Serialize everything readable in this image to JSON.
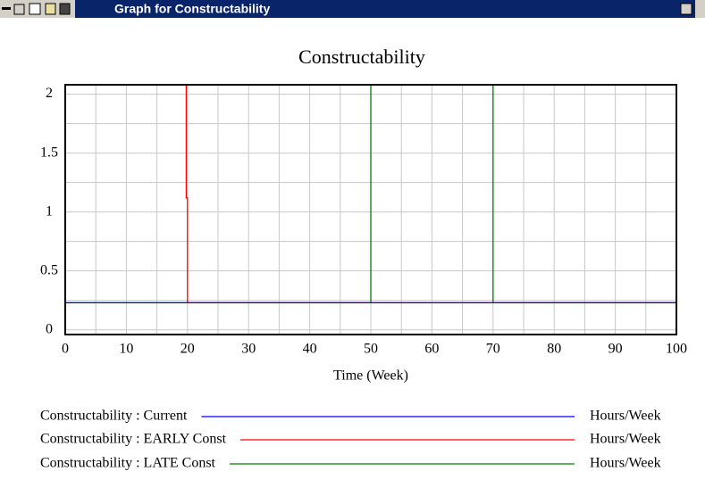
{
  "window": {
    "title": "Graph for Constructability"
  },
  "chart_data": {
    "type": "line",
    "title": "Constructability",
    "xlabel": "Time (Week)",
    "xlim": [
      0,
      100
    ],
    "xticks": [
      0,
      10,
      20,
      30,
      40,
      50,
      60,
      70,
      80,
      90,
      100
    ],
    "ylim": [
      -0.04,
      2.08
    ],
    "yticks": [
      0,
      0.5,
      1,
      1.5,
      2
    ],
    "grid": true,
    "series": [
      {
        "name": "Constructability : Current",
        "color": "#0000ff",
        "units": "Hours/Week",
        "x": [
          0,
          100
        ],
        "values": [
          0.23,
          0.23
        ]
      },
      {
        "name": "Constructability : EARLY Const",
        "color": "#ff0000",
        "units": "Hours/Week",
        "x": [
          0,
          19.8,
          19.8,
          20,
          20,
          100
        ],
        "values": [
          2.08,
          2.08,
          1.12,
          1.12,
          0.23,
          0.23
        ]
      },
      {
        "name": "Constructability : LATE Const",
        "color": "#008000",
        "units": "Hours/Week",
        "x": [
          0,
          50,
          50,
          70,
          70,
          100
        ],
        "values": [
          0.23,
          0.23,
          2.08,
          2.08,
          0.23,
          0.23
        ]
      }
    ]
  }
}
